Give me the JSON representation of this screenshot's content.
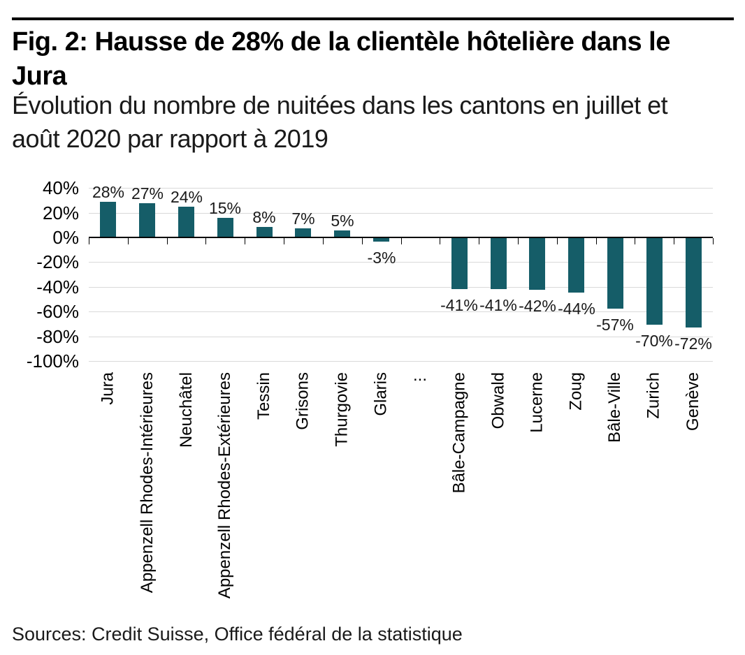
{
  "figure": {
    "title_line1": "Fig. 2: Hausse de 28% de la clientèle hôtelière dans le",
    "title_line2": "Jura",
    "subtitle_line1": "Évolution du nombre de nuitées dans les cantons en juillet et",
    "subtitle_line2": "août 2020 par rapport à 2019",
    "source": "Sources: Credit Suisse, Office fédéral de la statistique"
  },
  "chart_data": {
    "type": "bar",
    "title": "Fig. 2: Hausse de 28% de la clientèle hôtelière dans le Jura",
    "subtitle": "Évolution du nombre de nuitées dans les cantons en juillet et août 2020 par rapport à 2019",
    "categories": [
      "Jura",
      "Appenzell Rhodes-Intérieures",
      "Neuchâtel",
      "Appenzell Rhodes-Extérieures",
      "Tessin",
      "Grisons",
      "Thurgovie",
      "Glaris",
      "...",
      "Bâle-Campagne",
      "Obwald",
      "Lucerne",
      "Zoug",
      "Bâle-Ville",
      "Zurich",
      "Genève"
    ],
    "values": [
      28,
      27,
      24,
      15,
      8,
      7,
      5,
      -3,
      null,
      -41,
      -41,
      -42,
      -44,
      -57,
      -70,
      -72
    ],
    "data_labels": [
      "28%",
      "27%",
      "24%",
      "15%",
      "8%",
      "7%",
      "5%",
      "-3%",
      null,
      "-41%",
      "-41%",
      "-42%",
      "-44%",
      "-57%",
      "-70%",
      "-72%"
    ],
    "y_tick_labels": [
      "40%",
      "20%",
      "0%",
      "-20%",
      "-40%",
      "-60%",
      "-80%",
      "-100%"
    ],
    "y_tick_values": [
      40,
      20,
      0,
      -20,
      -40,
      -60,
      -80,
      -100
    ],
    "ylim": [
      -100,
      40
    ],
    "xlabel": "",
    "ylabel": "",
    "grid": "horizontal",
    "legend": false,
    "bar_color": "#155d68",
    "gridline_color": "#d9d9d9",
    "axis_color": "#000000",
    "source": "Sources: Credit Suisse, Office fédéral de la statistique"
  }
}
